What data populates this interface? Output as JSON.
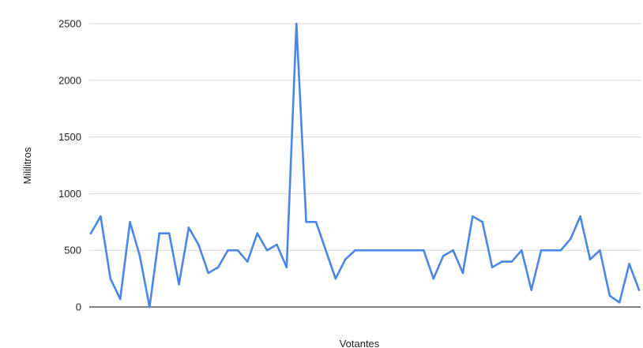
{
  "chart_data": {
    "type": "line",
    "title": "",
    "xlabel": "Votantes",
    "ylabel": "Mililitros",
    "ylim": [
      0,
      2500
    ],
    "yticks": [
      0,
      500,
      1000,
      1500,
      2000,
      2500
    ],
    "grid": true,
    "legend": "none",
    "series": [
      {
        "color": "#4a86e8",
        "values": [
          650,
          800,
          250,
          70,
          750,
          450,
          0,
          650,
          650,
          200,
          700,
          550,
          300,
          350,
          500,
          500,
          400,
          650,
          500,
          550,
          350,
          2500,
          750,
          750,
          500,
          250,
          420,
          500,
          500,
          500,
          500,
          500,
          500,
          500,
          500,
          250,
          450,
          500,
          300,
          800,
          750,
          350,
          400,
          400,
          500,
          150,
          500,
          500,
          500,
          600,
          800,
          420,
          500,
          100,
          40,
          380,
          150
        ]
      }
    ]
  },
  "colors": {
    "line": "#4a86e8",
    "grid": "#d9d9d9",
    "baseline": "#333333"
  }
}
